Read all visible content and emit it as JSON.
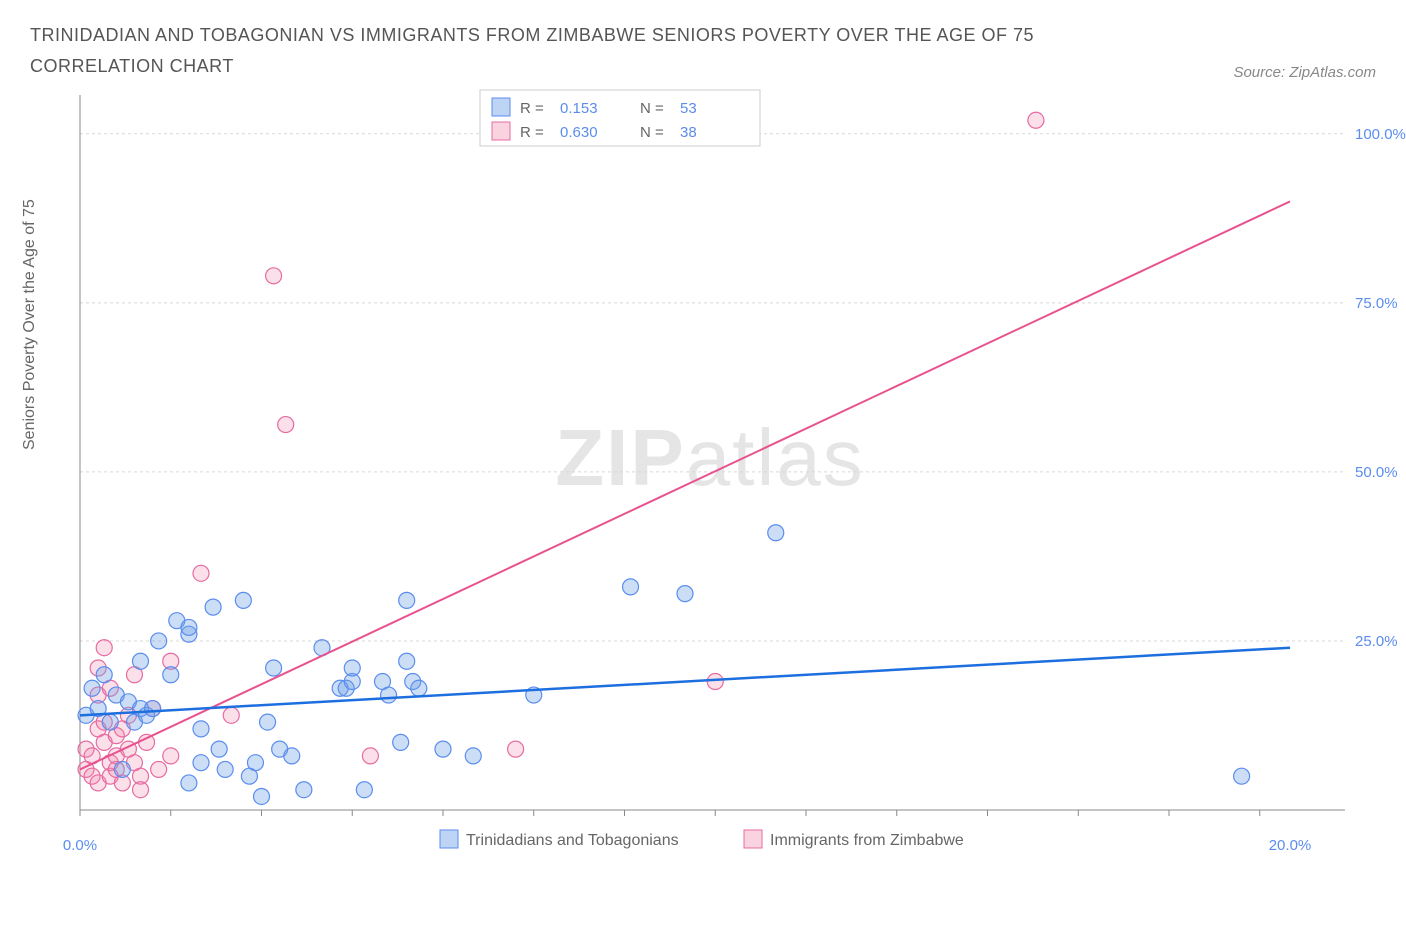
{
  "title": "TRINIDADIAN AND TOBAGONIAN VS IMMIGRANTS FROM ZIMBABWE SENIORS POVERTY OVER THE AGE OF 75 CORRELATION CHART",
  "source": "Source: ZipAtlas.com",
  "y_axis_label": "Seniors Poverty Over the Age of 75",
  "watermark_a": "ZIP",
  "watermark_b": "atlas",
  "chart": {
    "type": "scatter",
    "xlim": [
      0,
      20
    ],
    "ylim": [
      0,
      105
    ],
    "x_ticks": [
      0,
      20
    ],
    "x_tick_labels": [
      "0.0%",
      "20.0%"
    ],
    "y_ticks": [
      25,
      50,
      75,
      100
    ],
    "y_tick_labels": [
      "25.0%",
      "50.0%",
      "75.0%",
      "100.0%"
    ],
    "background_color": "#ffffff",
    "grid_color": "#d8d8d8",
    "series": [
      {
        "name": "Trinidadians and Tobagonians",
        "color_fill": "rgba(110,160,230,0.35)",
        "color_stroke": "#5b8def",
        "marker_r": 8,
        "R": "0.153",
        "N": "53",
        "trend": {
          "x1": 0,
          "y1": 14,
          "x2": 20,
          "y2": 24,
          "color": "#1d6fe0",
          "width": 2.5
        },
        "points": [
          [
            0.1,
            14
          ],
          [
            0.2,
            18
          ],
          [
            0.3,
            15
          ],
          [
            0.4,
            20
          ],
          [
            0.5,
            13
          ],
          [
            0.6,
            17
          ],
          [
            0.7,
            6
          ],
          [
            0.8,
            16
          ],
          [
            0.9,
            13
          ],
          [
            1.0,
            22
          ],
          [
            1.0,
            15
          ],
          [
            1.1,
            14
          ],
          [
            1.2,
            15
          ],
          [
            1.3,
            25
          ],
          [
            1.5,
            20
          ],
          [
            1.6,
            28
          ],
          [
            1.8,
            26
          ],
          [
            1.8,
            27
          ],
          [
            1.8,
            4
          ],
          [
            2.0,
            12
          ],
          [
            2.0,
            7
          ],
          [
            2.2,
            30
          ],
          [
            2.3,
            9
          ],
          [
            2.4,
            6
          ],
          [
            2.7,
            31
          ],
          [
            2.8,
            5
          ],
          [
            2.9,
            7
          ],
          [
            3.0,
            2
          ],
          [
            3.1,
            13
          ],
          [
            3.2,
            21
          ],
          [
            3.3,
            9
          ],
          [
            3.5,
            8
          ],
          [
            3.7,
            3
          ],
          [
            4.0,
            24
          ],
          [
            4.3,
            18
          ],
          [
            4.4,
            18
          ],
          [
            4.5,
            19
          ],
          [
            4.5,
            21
          ],
          [
            4.7,
            3
          ],
          [
            5.0,
            19
          ],
          [
            5.1,
            17
          ],
          [
            5.3,
            10
          ],
          [
            5.4,
            22
          ],
          [
            5.5,
            19
          ],
          [
            5.6,
            18
          ],
          [
            5.4,
            31
          ],
          [
            6.0,
            9
          ],
          [
            6.5,
            8
          ],
          [
            7.5,
            17
          ],
          [
            9.1,
            33
          ],
          [
            10.0,
            32
          ],
          [
            11.5,
            41
          ],
          [
            19.2,
            5
          ]
        ]
      },
      {
        "name": "Immigrants from Zimbabwe",
        "color_fill": "rgba(240,130,170,0.25)",
        "color_stroke": "#e76ba0",
        "marker_r": 8,
        "R": "0.630",
        "N": "38",
        "trend": {
          "x1": 0,
          "y1": 6,
          "x2": 20,
          "y2": 90,
          "color": "#e8528e",
          "width": 2
        },
        "points": [
          [
            0.1,
            6
          ],
          [
            0.1,
            9
          ],
          [
            0.2,
            5
          ],
          [
            0.2,
            8
          ],
          [
            0.3,
            12
          ],
          [
            0.3,
            17
          ],
          [
            0.3,
            4
          ],
          [
            0.3,
            21
          ],
          [
            0.4,
            10
          ],
          [
            0.4,
            13
          ],
          [
            0.4,
            24
          ],
          [
            0.5,
            7
          ],
          [
            0.5,
            5
          ],
          [
            0.5,
            18
          ],
          [
            0.6,
            11
          ],
          [
            0.6,
            8
          ],
          [
            0.6,
            6
          ],
          [
            0.7,
            12
          ],
          [
            0.7,
            4
          ],
          [
            0.8,
            14
          ],
          [
            0.8,
            9
          ],
          [
            0.9,
            7
          ],
          [
            0.9,
            20
          ],
          [
            1.0,
            5
          ],
          [
            1.0,
            3
          ],
          [
            1.1,
            10
          ],
          [
            1.2,
            15
          ],
          [
            1.3,
            6
          ],
          [
            1.5,
            22
          ],
          [
            1.5,
            8
          ],
          [
            2.0,
            35
          ],
          [
            2.5,
            14
          ],
          [
            3.2,
            79
          ],
          [
            3.4,
            57
          ],
          [
            4.8,
            8
          ],
          [
            7.2,
            9
          ],
          [
            10.5,
            19
          ],
          [
            15.8,
            102
          ]
        ]
      }
    ],
    "bottom_legend": [
      {
        "swatch_class": "legend-sw-blue",
        "label": "Trinidadians and Tobagonians"
      },
      {
        "swatch_class": "legend-sw-pink",
        "label": "Immigrants from Zimbabwe"
      }
    ]
  },
  "stats_legend": {
    "r_label": "R =",
    "n_label": "N ="
  }
}
